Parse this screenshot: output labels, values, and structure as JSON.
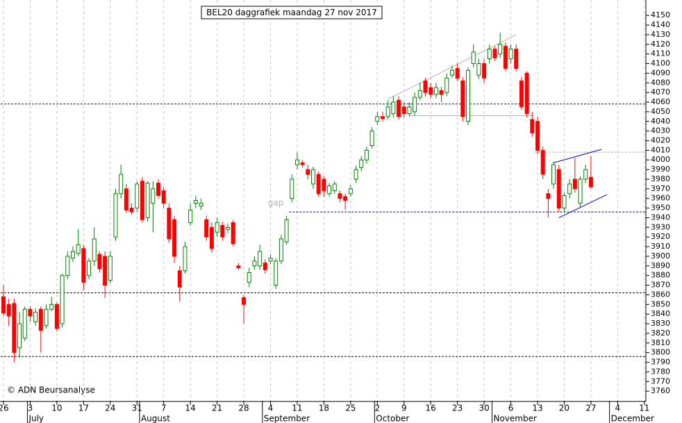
{
  "chart_data": {
    "type": "candlestick",
    "title": "BEL20 daggrafiek maandag 27 nov 2017",
    "copyright": "© ADN Beursanalyse",
    "annotation": {
      "text": "gap",
      "x": 51,
      "y": 3955
    },
    "categories": [
      "26",
      null,
      null,
      null,
      null,
      "3",
      null,
      null,
      null,
      null,
      "10",
      null,
      null,
      null,
      null,
      "17",
      null,
      null,
      null,
      null,
      "24",
      null,
      null,
      null,
      null,
      "31",
      null,
      null,
      null,
      null,
      "7",
      null,
      null,
      null,
      null,
      "14",
      null,
      null,
      null,
      null,
      "21",
      null,
      null,
      null,
      null,
      "28",
      null,
      null,
      null,
      null,
      "4",
      null,
      null,
      null,
      null,
      "11",
      null,
      null,
      null,
      null,
      "18",
      null,
      null,
      null,
      null,
      "25",
      null,
      null,
      null,
      null,
      "2",
      null,
      null,
      null,
      null,
      "9",
      null,
      null,
      null,
      null,
      "16",
      null,
      null,
      null,
      null,
      "23",
      null,
      null,
      null,
      null,
      "30",
      null,
      null,
      null,
      null,
      "6",
      null,
      null,
      null,
      null,
      "13",
      null,
      null,
      null,
      null,
      "20",
      null,
      null,
      null,
      null,
      "27",
      null,
      null,
      null,
      null,
      "4",
      null,
      null,
      null,
      null,
      "11"
    ],
    "months": [
      null,
      null,
      null,
      null,
      null,
      "July",
      null,
      null,
      null,
      null,
      null,
      null,
      null,
      null,
      null,
      null,
      null,
      null,
      null,
      null,
      null,
      null,
      null,
      null,
      null,
      null,
      "August",
      null,
      null,
      null,
      null,
      null,
      null,
      null,
      null,
      null,
      null,
      null,
      null,
      null,
      null,
      null,
      null,
      null,
      null,
      null,
      null,
      null,
      null,
      "September",
      null,
      null,
      null,
      null,
      null,
      null,
      null,
      null,
      null,
      null,
      null,
      null,
      null,
      null,
      null,
      null,
      null,
      null,
      null,
      null,
      "October",
      null,
      null,
      null,
      null,
      null,
      null,
      null,
      null,
      null,
      null,
      null,
      null,
      null,
      null,
      null,
      null,
      null,
      null,
      null,
      null,
      null,
      "November",
      null,
      null,
      null,
      null,
      null,
      null,
      null,
      null,
      null,
      null,
      null,
      null,
      null,
      null,
      null,
      null,
      null,
      null,
      null,
      null,
      null,
      "December",
      null,
      null,
      null,
      null,
      null,
      null
    ],
    "open": [
      3858,
      3850,
      3851,
      3805,
      3815,
      3845,
      3832,
      3845,
      3828,
      3845,
      3850,
      3830,
      3880,
      3898,
      3903,
      3908,
      3880,
      3895,
      3902,
      3900,
      3875,
      3920,
      3965,
      3970,
      3950,
      3950,
      3978,
      3940,
      3955,
      3976,
      3968,
      3950,
      3938,
      3885,
      3885,
      3935,
      3955,
      3952,
      3938,
      3930,
      3925,
      3932,
      3928,
      3935,
      3890,
      3857,
      3873,
      3890,
      3890,
      3893,
      3895,
      3870,
      3895,
      3915,
      3960,
      3995,
      3997,
      3990,
      3975,
      3985,
      3980,
      3965,
      3968,
      3965,
      3962,
      3965,
      3980,
      3992,
      4000,
      4015,
      4040,
      4045,
      4045,
      4048,
      4062,
      4055,
      4048,
      4050,
      4065,
      4082,
      4075,
      4068,
      4072,
      4070,
      4088,
      4095,
      4082,
      4040,
      4100,
      4088,
      4100,
      4105,
      4115,
      4110,
      4118,
      4105,
      4115,
      4082,
      4090,
      4042,
      4040,
      4010,
      3965,
      3975,
      3990,
      3950,
      3965,
      3980,
      3955,
      3980,
      3982,
      null,
      null,
      null,
      null,
      null,
      null,
      null,
      null,
      null,
      null
    ],
    "high": [
      3870,
      3856,
      3856,
      3842,
      3848,
      3848,
      3846,
      3848,
      3850,
      3858,
      3852,
      3882,
      3905,
      3910,
      3928,
      3912,
      3898,
      3930,
      3905,
      3905,
      3905,
      3970,
      3995,
      3975,
      3955,
      3978,
      3982,
      3978,
      3978,
      3980,
      3972,
      3955,
      3942,
      3890,
      3915,
      3955,
      3963,
      3960,
      3942,
      3935,
      3940,
      3936,
      3934,
      3938,
      3893,
      3860,
      3888,
      3900,
      3912,
      3897,
      3902,
      3898,
      3922,
      3942,
      3985,
      4008,
      4000,
      3995,
      3993,
      3988,
      3983,
      3976,
      3978,
      3968,
      3965,
      3974,
      3994,
      4004,
      4014,
      4034,
      4050,
      4050,
      4062,
      4066,
      4066,
      4060,
      4060,
      4070,
      4080,
      4085,
      4080,
      4080,
      4076,
      4090,
      4098,
      4100,
      4086,
      4096,
      4120,
      4105,
      4105,
      4120,
      4118,
      4132,
      4122,
      4120,
      4120,
      4086,
      4092,
      4050,
      4045,
      4014,
      3970,
      3998,
      3995,
      3966,
      3980,
      4002,
      3983,
      3995,
      4004,
      null,
      null,
      null,
      null,
      null,
      null,
      null,
      null,
      null,
      null
    ],
    "low": [
      3838,
      3828,
      3790,
      3795,
      3812,
      3832,
      3828,
      3800,
      3825,
      3843,
      3822,
      3826,
      3876,
      3894,
      3900,
      3865,
      3876,
      3890,
      3883,
      3857,
      3872,
      3916,
      3960,
      3945,
      3943,
      3946,
      3935,
      3936,
      3925,
      3960,
      3950,
      3914,
      3893,
      3853,
      3882,
      3932,
      3950,
      3948,
      3916,
      3904,
      3920,
      3916,
      3924,
      3910,
      3886,
      3830,
      3868,
      3886,
      3886,
      3882,
      3892,
      3866,
      3892,
      3912,
      3956,
      3990,
      3992,
      3980,
      3970,
      3962,
      3962,
      3962,
      3965,
      3956,
      3948,
      3962,
      3976,
      3988,
      3996,
      4012,
      4036,
      4040,
      4042,
      4044,
      4042,
      4044,
      4045,
      4046,
      4062,
      4066,
      4064,
      4064,
      4060,
      4066,
      4085,
      4082,
      4040,
      4036,
      4096,
      4084,
      4080,
      4100,
      4103,
      4106,
      4092,
      4100,
      4092,
      4052,
      4044,
      4024,
      4006,
      3980,
      3940,
      3970,
      3946,
      3946,
      3960,
      3966,
      3950,
      3976,
      3970,
      null,
      null,
      null,
      null,
      null,
      null,
      null,
      null,
      null,
      null
    ],
    "close": [
      3841,
      3838,
      3800,
      3830,
      3845,
      3838,
      3842,
      3823,
      3845,
      3850,
      3825,
      3880,
      3900,
      3905,
      3912,
      3873,
      3895,
      3918,
      3887,
      3870,
      3900,
      3965,
      3985,
      3948,
      3946,
      3975,
      3938,
      3976,
      3970,
      3963,
      3955,
      3918,
      3900,
      3868,
      3910,
      3948,
      3958,
      3955,
      3920,
      3908,
      3935,
      3920,
      3930,
      3913,
      3888,
      3850,
      3883,
      3895,
      3905,
      3886,
      3898,
      3895,
      3918,
      3938,
      3980,
      4000,
      3995,
      3985,
      3990,
      3965,
      3968,
      3973,
      3975,
      3960,
      3958,
      3970,
      3990,
      4000,
      4010,
      4030,
      4045,
      4043,
      4055,
      4060,
      4045,
      4048,
      4055,
      4065,
      4072,
      4070,
      4068,
      4075,
      4068,
      4085,
      4093,
      4085,
      4045,
      4093,
      4112,
      4100,
      4085,
      4115,
      4106,
      4120,
      4095,
      4115,
      4095,
      4055,
      4048,
      4028,
      4010,
      3985,
      3960,
      3995,
      3950,
      3963,
      3975,
      3970,
      3980,
      3990,
      3972,
      null,
      null,
      null,
      null,
      null,
      null,
      null,
      null,
      null,
      null
    ],
    "up_color": "#008000",
    "down_color": "#ff0000",
    "ylim": [
      3750,
      4166
    ],
    "yticks": [
      3760,
      3770,
      3780,
      3790,
      3800,
      3810,
      3820,
      3830,
      3840,
      3850,
      3860,
      3870,
      3880,
      3890,
      3900,
      3910,
      3920,
      3930,
      3940,
      3950,
      3960,
      3970,
      3980,
      3990,
      4000,
      4010,
      4020,
      4030,
      4040,
      4050,
      4060,
      4070,
      4080,
      4090,
      4100,
      4110,
      4120,
      4130,
      4140,
      4150
    ],
    "hlines": [
      {
        "value": 4058,
        "color": "#0000a0",
        "from": 0
      },
      {
        "value": 3946,
        "color": "#0000a0",
        "from": 54
      },
      {
        "value": 3862,
        "color": "#000000",
        "from": 0
      },
      {
        "value": 3796,
        "color": "#000000",
        "from": 0
      },
      {
        "value": 4008,
        "color": "#b0b0b0",
        "from": 100
      }
    ],
    "trendlines": [
      {
        "x": [
          72,
          96
        ],
        "y": [
          4063,
          4130
        ],
        "color": "#b0b0b0"
      },
      {
        "x": [
          76,
          99
        ],
        "y": [
          4046,
          4046
        ],
        "color": "#b0b0b0"
      },
      {
        "x": [
          103,
          112
        ],
        "y": [
          3997,
          4011
        ],
        "color": "#0000cc"
      },
      {
        "x": [
          104,
          113
        ],
        "y": [
          3940,
          3964
        ],
        "color": "#0000cc"
      }
    ]
  }
}
